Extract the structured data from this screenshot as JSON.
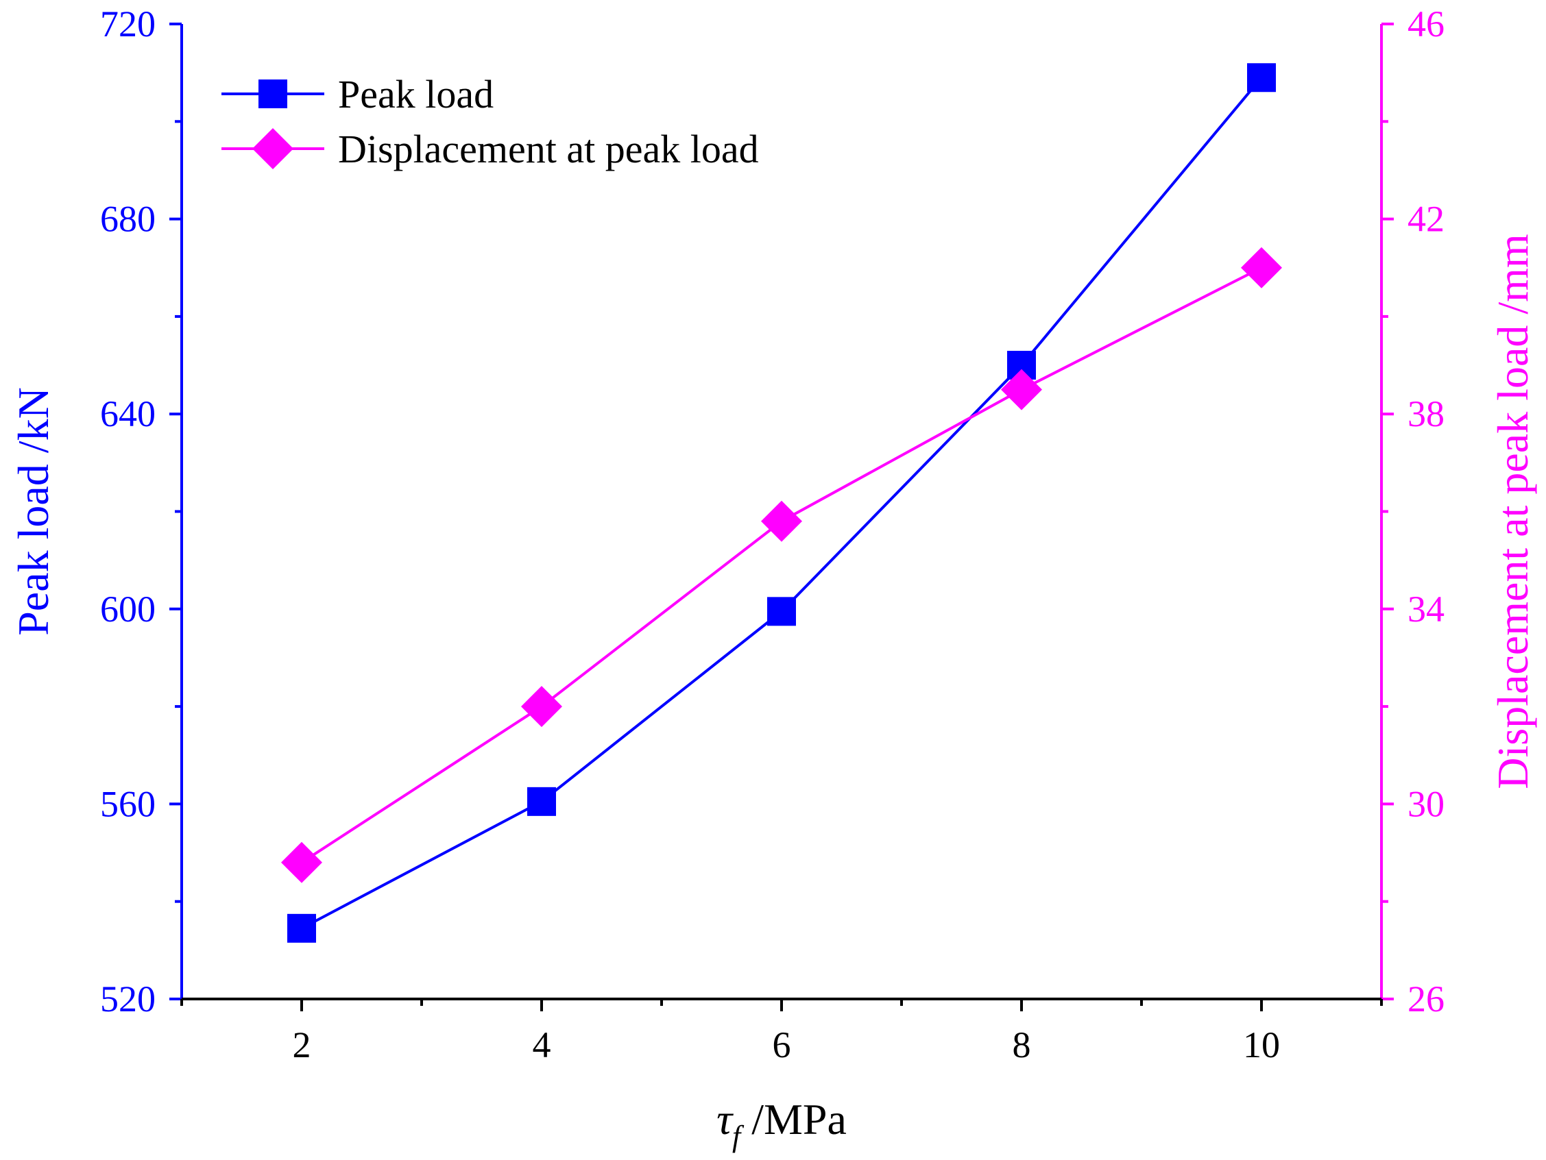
{
  "chart_data": {
    "type": "line",
    "x": [
      2,
      4,
      6,
      8,
      10
    ],
    "xlim": [
      1,
      11
    ],
    "x_ticks": [
      "2",
      "4",
      "6",
      "8",
      "10"
    ],
    "x_minor_ticks": [
      1,
      3,
      5,
      7,
      9,
      11
    ],
    "xlabel_symbol": "τ",
    "xlabel_subscript": "f",
    "xlabel_unit": " /MPa",
    "ylabel_left": "Peak load /kN",
    "ylim_left": [
      520,
      720
    ],
    "y_ticks_left": [
      "520",
      "560",
      "600",
      "640",
      "680",
      "720"
    ],
    "ylabel_right": "Displacement at peak load /mm",
    "ylim_right": [
      26,
      46
    ],
    "y_ticks_right": [
      "26",
      "30",
      "34",
      "38",
      "42",
      "46"
    ],
    "grid": false,
    "legend_position": "top-left",
    "series": [
      {
        "name": "Peak load",
        "axis": "left",
        "marker": "square",
        "color": "#0000ff",
        "values": [
          534.5,
          560.5,
          599.5,
          650,
          709
        ]
      },
      {
        "name": "Displacement at peak load",
        "axis": "right",
        "marker": "diamond",
        "color": "#ff00ff",
        "values": [
          28.8,
          32.0,
          35.8,
          38.5,
          41.0
        ]
      }
    ]
  },
  "colors": {
    "left_axis": "#0000ff",
    "right_axis": "#ff00ff",
    "bottom_axis": "#000000"
  }
}
